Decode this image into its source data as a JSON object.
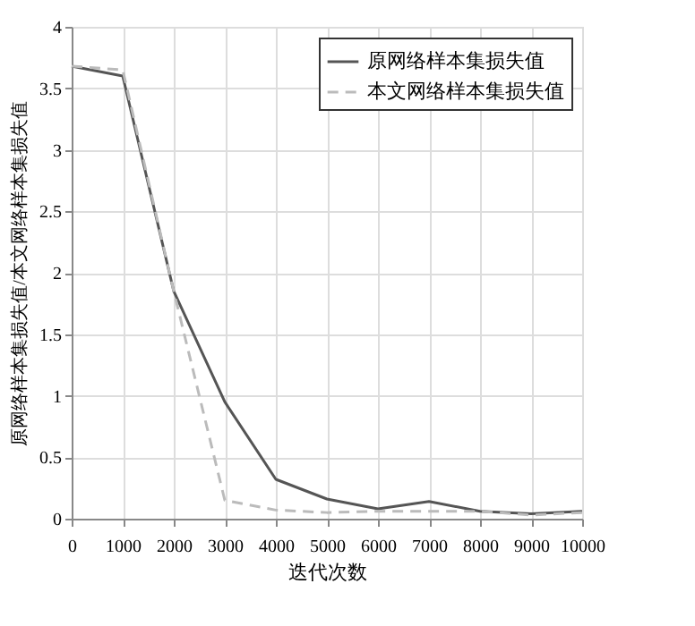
{
  "chart_data": {
    "type": "line",
    "xlabel": "迭代次数",
    "ylabel": "原网络样本集损失值/本文网络样本集损失值",
    "x": [
      0,
      1000,
      2000,
      3000,
      4000,
      5000,
      6000,
      7000,
      8000,
      9000,
      10000
    ],
    "series": [
      {
        "name": "原网络样本集损失值",
        "color": "#555555",
        "line_style": "solid",
        "values": [
          3.68,
          3.6,
          1.85,
          0.95,
          0.32,
          0.16,
          0.08,
          0.14,
          0.06,
          0.04,
          0.06
        ]
      },
      {
        "name": "本文网络样本集损失值",
        "color": "#bbbbbb",
        "line_style": "dashed",
        "values": [
          3.68,
          3.65,
          1.85,
          0.15,
          0.07,
          0.05,
          0.06,
          0.06,
          0.06,
          0.03,
          0.05
        ]
      }
    ],
    "xlim": [
      0,
      10000
    ],
    "xticks": [
      0,
      1000,
      2000,
      3000,
      4000,
      5000,
      6000,
      7000,
      8000,
      9000,
      10000
    ],
    "ylim": [
      0,
      4
    ],
    "yticks": [
      0,
      0.5,
      1,
      1.5,
      2,
      2.5,
      3,
      3.5,
      4
    ],
    "grid": true,
    "legend": "top right",
    "marker": "none"
  }
}
